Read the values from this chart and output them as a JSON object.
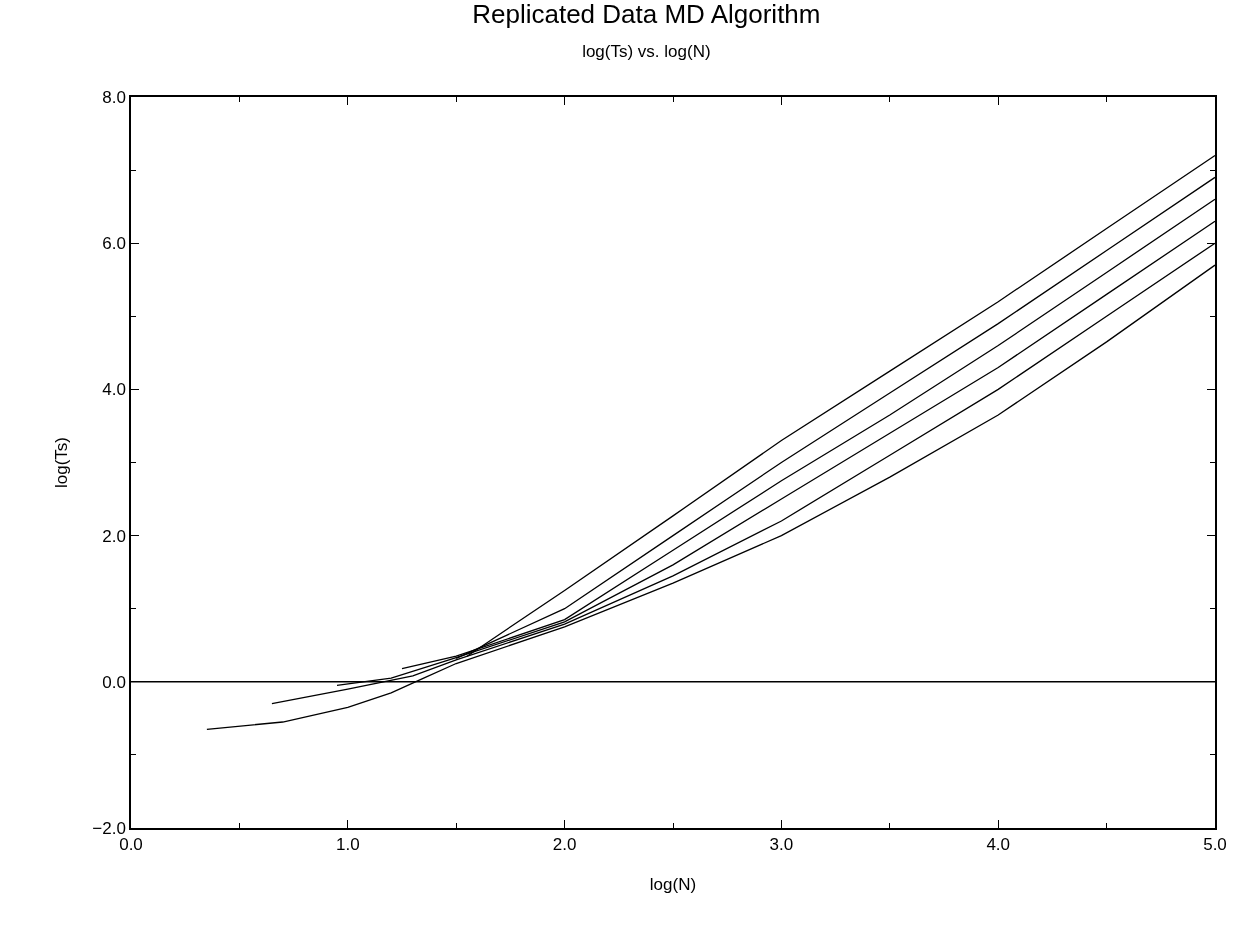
{
  "chart_data": {
    "type": "line",
    "title": "Replicated Data MD Algorithm",
    "subtitle": "log(Ts) vs. log(N)",
    "xlabel": "log(N)",
    "ylabel": "log(Ts)",
    "xlim": [
      0,
      5
    ],
    "ylim": [
      -2,
      8
    ],
    "xticks": [
      {
        "value": 0,
        "label": "0.0"
      },
      {
        "value": 1,
        "label": "1.0"
      },
      {
        "value": 2,
        "label": "2.0"
      },
      {
        "value": 3,
        "label": "3.0"
      },
      {
        "value": 4,
        "label": "4.0"
      },
      {
        "value": 5,
        "label": "5.0"
      }
    ],
    "yticks": [
      {
        "value": -2,
        "label": "−2.0"
      },
      {
        "value": 0,
        "label": "0.0"
      },
      {
        "value": 2,
        "label": "2.0"
      },
      {
        "value": 4,
        "label": "4.0"
      },
      {
        "value": 6,
        "label": "6.0"
      },
      {
        "value": 8,
        "label": "8.0"
      }
    ],
    "marker": "none",
    "line_style": "solid",
    "ref_lines": [
      {
        "axis": "y",
        "value": 0,
        "label": null,
        "color": "#000000"
      }
    ],
    "series": [
      {
        "color": "#000000",
        "x": [
          0.35,
          0.7,
          1.0,
          1.2,
          1.35,
          1.5,
          2,
          2.5,
          3,
          3.5,
          4,
          4.5,
          5
        ],
        "values": [
          -0.65,
          -0.55,
          -0.35,
          -0.15,
          0.05,
          0.25,
          0.75,
          1.35,
          2.0,
          2.8,
          3.65,
          4.65,
          5.7
        ]
      },
      {
        "color": "#000000",
        "x": [
          0.65,
          1.0,
          1.3,
          1.5,
          2,
          2.5,
          3,
          3.5,
          4,
          4.5,
          5
        ],
        "values": [
          -0.3,
          -0.1,
          0.08,
          0.3,
          0.79,
          1.45,
          2.2,
          3.1,
          4.0,
          5.0,
          6.0
        ]
      },
      {
        "color": "#000000",
        "x": [
          0.95,
          1.2,
          1.5,
          2,
          2.5,
          3,
          3.5,
          4,
          4.5,
          5
        ],
        "values": [
          -0.05,
          0.05,
          0.33,
          0.82,
          1.6,
          2.5,
          3.4,
          4.3,
          5.3,
          6.3
        ]
      },
      {
        "color": "#000000",
        "x": [
          1.25,
          1.5,
          2,
          2.5,
          3,
          3.5,
          4,
          4.5,
          5
        ],
        "values": [
          0.18,
          0.35,
          0.85,
          1.8,
          2.75,
          3.65,
          4.6,
          5.6,
          6.6
        ]
      },
      {
        "color": "#000000",
        "x": [
          1.5,
          2,
          2.5,
          3,
          3.5,
          4,
          4.5,
          5
        ],
        "values": [
          0.32,
          1.0,
          2.0,
          3.0,
          3.95,
          4.9,
          5.9,
          6.9
        ]
      },
      {
        "color": "#000000",
        "x": [
          1.55,
          2,
          2.5,
          3,
          3.5,
          4,
          4.5,
          5
        ],
        "values": [
          0.35,
          1.25,
          2.27,
          3.3,
          4.25,
          5.2,
          6.2,
          7.2
        ]
      }
    ]
  }
}
